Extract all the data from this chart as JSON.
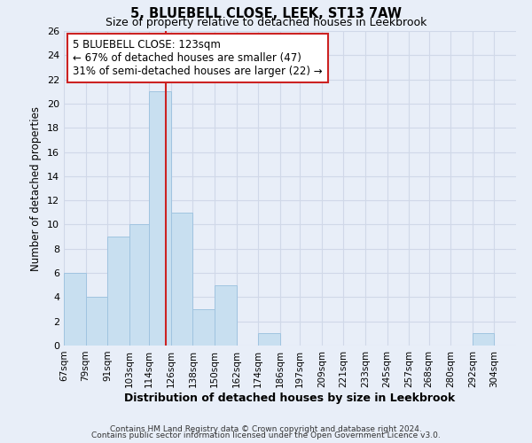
{
  "title": "5, BLUEBELL CLOSE, LEEK, ST13 7AW",
  "subtitle": "Size of property relative to detached houses in Leekbrook",
  "xlabel": "Distribution of detached houses by size in Leekbrook",
  "ylabel": "Number of detached properties",
  "bar_left_edges": [
    67,
    79,
    91,
    103,
    114,
    126,
    138,
    150,
    162,
    174,
    186,
    197,
    209,
    221,
    233,
    245,
    257,
    268,
    280,
    292
  ],
  "bar_widths": [
    12,
    12,
    12,
    11,
    12,
    12,
    12,
    12,
    12,
    12,
    11,
    12,
    12,
    12,
    12,
    12,
    11,
    12,
    12,
    12
  ],
  "bar_heights": [
    6,
    4,
    9,
    10,
    21,
    11,
    3,
    5,
    0,
    1,
    0,
    0,
    0,
    0,
    0,
    0,
    0,
    0,
    0,
    1
  ],
  "bar_color": "#c8dff0",
  "bar_edge_color": "#a0c4e0",
  "x_tick_labels": [
    "67sqm",
    "79sqm",
    "91sqm",
    "103sqm",
    "114sqm",
    "126sqm",
    "138sqm",
    "150sqm",
    "162sqm",
    "174sqm",
    "186sqm",
    "197sqm",
    "209sqm",
    "221sqm",
    "233sqm",
    "245sqm",
    "257sqm",
    "268sqm",
    "280sqm",
    "292sqm",
    "304sqm"
  ],
  "x_tick_positions": [
    67,
    79,
    91,
    103,
    114,
    126,
    138,
    150,
    162,
    174,
    186,
    197,
    209,
    221,
    233,
    245,
    257,
    268,
    280,
    292,
    304
  ],
  "ylim": [
    0,
    26
  ],
  "yticks": [
    0,
    2,
    4,
    6,
    8,
    10,
    12,
    14,
    16,
    18,
    20,
    22,
    24,
    26
  ],
  "vline_x": 123,
  "vline_color": "#cc2222",
  "annotation_lines": [
    "5 BLUEBELL CLOSE: 123sqm",
    "← 67% of detached houses are smaller (47)",
    "31% of semi-detached houses are larger (22) →"
  ],
  "annotation_box_color": "#ffffff",
  "annotation_box_edge_color": "#cc2222",
  "grid_color": "#d0d8e8",
  "background_color": "#e8eef8",
  "footer_line1": "Contains HM Land Registry data © Crown copyright and database right 2024.",
  "footer_line2": "Contains public sector information licensed under the Open Government Licence v3.0."
}
